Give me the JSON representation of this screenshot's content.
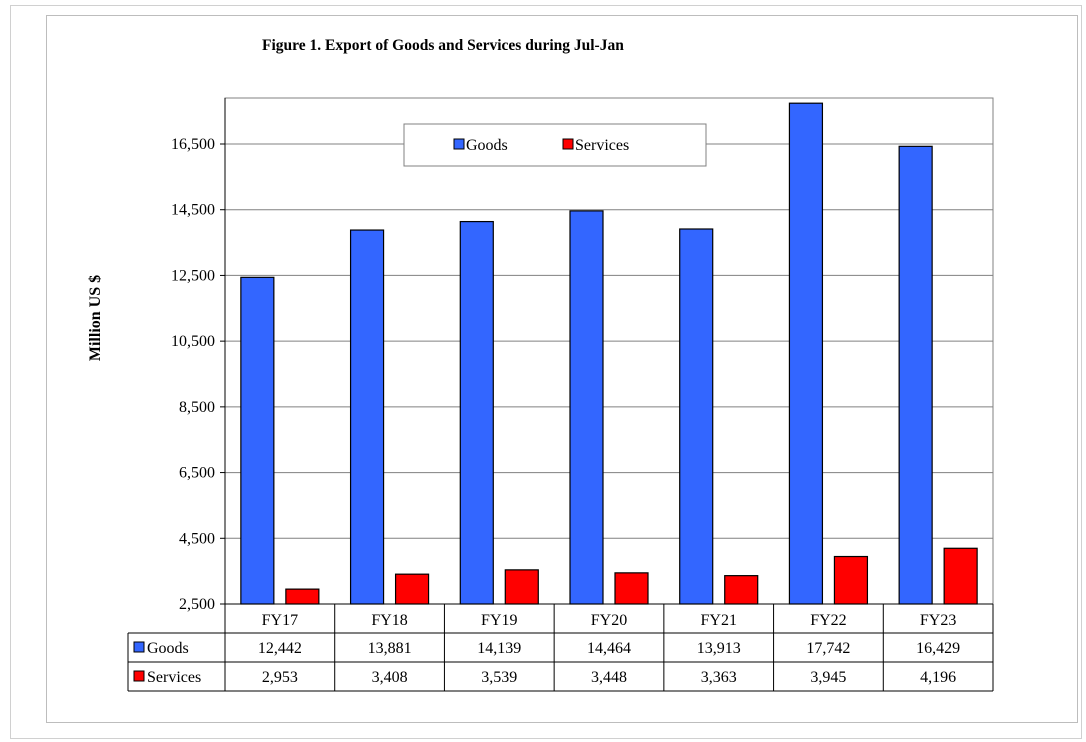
{
  "chart_data": {
    "type": "bar",
    "title": "Figure 1. Export of Goods and Services during Jul-Jan",
    "ylabel": "Million US $",
    "xlabel": "",
    "categories": [
      "FY17",
      "FY18",
      "FY19",
      "FY20",
      "FY21",
      "FY22",
      "FY23"
    ],
    "series": [
      {
        "name": "Goods",
        "color": "#3366ff",
        "values": [
          12442,
          13881,
          14139,
          14464,
          13913,
          17742,
          16429
        ],
        "labels": [
          "12,442",
          "13,881",
          "14,139",
          "14,464",
          "13,913",
          "17,742",
          "16,429"
        ]
      },
      {
        "name": "Services",
        "color": "#ff0000",
        "values": [
          2953,
          3408,
          3539,
          3448,
          3363,
          3945,
          4196
        ],
        "labels": [
          "2,953",
          "3,408",
          "3,539",
          "3,448",
          "3,363",
          "3,945",
          "4,196"
        ]
      }
    ],
    "ylim": [
      2500,
      17900
    ],
    "yticks": [
      2500,
      4500,
      6500,
      8500,
      10500,
      12500,
      14500,
      16500
    ],
    "ytick_labels": [
      "2,500",
      "4,500",
      "6,500",
      "8,500",
      "10,500",
      "12,500",
      "14,500",
      "16,500"
    ],
    "grid": true,
    "legend_position": "top-center",
    "data_table": true
  }
}
